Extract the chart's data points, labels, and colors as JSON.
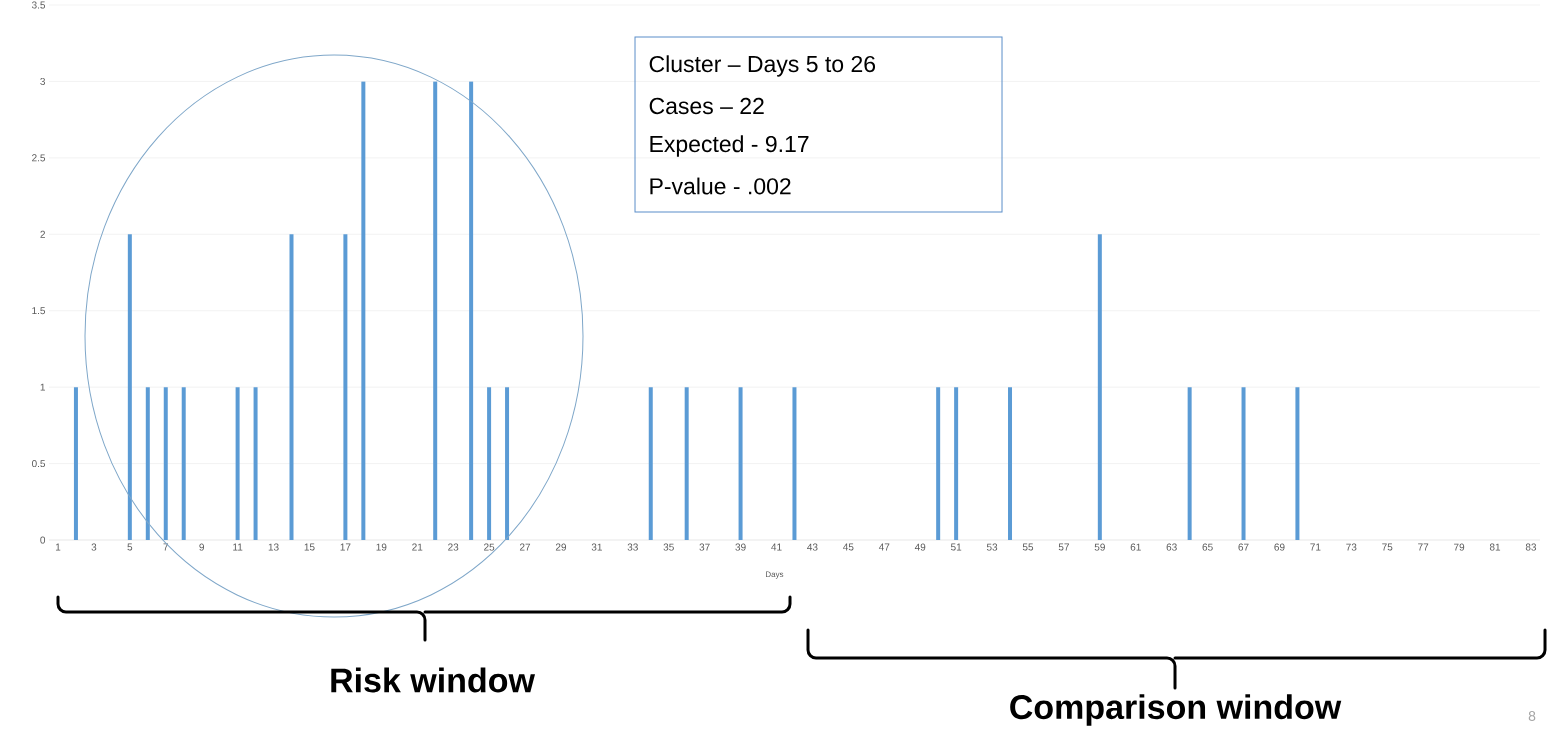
{
  "chart_data": {
    "type": "bar",
    "xlabel": "Days",
    "categories": [
      "1",
      null,
      "3",
      null,
      "5",
      null,
      "7",
      null,
      "9",
      null,
      "11",
      null,
      "13",
      null,
      "15",
      null,
      "17",
      null,
      "19",
      null,
      "21",
      null,
      "23",
      null,
      "25",
      null,
      "27",
      null,
      "29",
      null,
      "31",
      null,
      "33",
      null,
      "35",
      null,
      "37",
      null,
      "39",
      null,
      "41",
      null,
      "43",
      null,
      "45",
      null,
      "47",
      null,
      "49",
      null,
      "51",
      null,
      "53",
      null,
      "55",
      null,
      "57",
      null,
      "59",
      null,
      "61",
      null,
      "63",
      null,
      "65",
      null,
      "67",
      null,
      "69",
      null,
      "71",
      null,
      "73",
      null,
      "75",
      null,
      "77",
      null,
      "79",
      null,
      "81",
      null,
      "83"
    ],
    "values": [
      0,
      1,
      0,
      0,
      2,
      1,
      1,
      1,
      0,
      0,
      1,
      1,
      0,
      2,
      0,
      0,
      2,
      3,
      0,
      0,
      0,
      3,
      0,
      3,
      1,
      1,
      0,
      0,
      0,
      0,
      0,
      0,
      0,
      1,
      0,
      1,
      0,
      0,
      1,
      0,
      0,
      1,
      0,
      0,
      0,
      0,
      0,
      0,
      0,
      1,
      1,
      0,
      0,
      1,
      0,
      0,
      0,
      0,
      2,
      0,
      0,
      0,
      0,
      1,
      0,
      0,
      1,
      0,
      0,
      1,
      0,
      0,
      0,
      0,
      0,
      0,
      0,
      0,
      0,
      0,
      0,
      0,
      0
    ],
    "color": "#5b9bd5",
    "ylim": [
      0,
      3.5
    ],
    "yticks": [
      0,
      0.5,
      1,
      1.5,
      2,
      2.5,
      3,
      3.5
    ],
    "grid": "y",
    "annotations": [
      "Cluster – Days 5 to 26",
      "Cases – 22",
      "Expected - 9.17",
      "P-value - .002",
      "Risk window",
      "Comparison window",
      "8"
    ]
  }
}
